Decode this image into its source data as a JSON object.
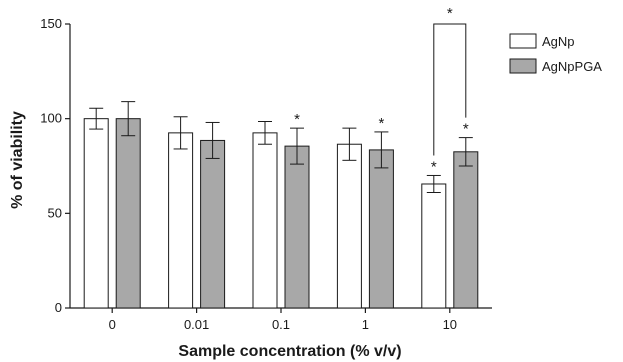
{
  "chart_data": {
    "type": "bar",
    "xlabel": "Sample concentration (% v/v)",
    "ylabel": "% of viability",
    "categories": [
      "0",
      "0.01",
      "0.1",
      "1",
      "10"
    ],
    "ylim": [
      0,
      150
    ],
    "yticks": [
      "0",
      "50",
      "100",
      "150"
    ],
    "series": [
      {
        "name": "AgNp",
        "color": "#ffffff",
        "values": [
          100,
          92.5,
          92.5,
          86.5,
          65.5
        ],
        "errors": [
          5.5,
          8.5,
          6,
          8.5,
          4.5
        ],
        "significance": [
          "",
          "",
          "",
          "",
          "*"
        ]
      },
      {
        "name": "AgNpPGA",
        "color": "#a8a8a8",
        "values": [
          100,
          88.5,
          85.5,
          83.5,
          82.5
        ],
        "errors": [
          9,
          9.5,
          9.5,
          9.5,
          7.5
        ],
        "significance": [
          "",
          "",
          "*",
          "*",
          "*"
        ]
      }
    ],
    "comparison": {
      "category": "10",
      "label": "*"
    },
    "legend_position": "top-right"
  }
}
